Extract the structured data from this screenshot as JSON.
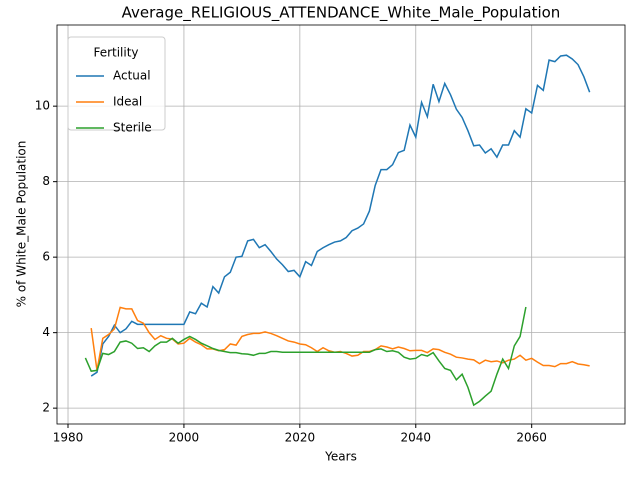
{
  "chart_data": {
    "type": "line",
    "title": "Average_RELIGIOUS_ATTENDANCE_White_Male_Population",
    "xlabel": "Years",
    "ylabel": "% of White_Male Population",
    "legend_title": "Fertility",
    "legend": "upper left",
    "grid": true,
    "x": [
      1983,
      1984,
      1985,
      1986,
      1987,
      1988,
      1989,
      1990,
      1991,
      1992,
      1993,
      1994,
      1995,
      1996,
      1997,
      1998,
      1999,
      2000,
      2001,
      2002,
      2003,
      2004,
      2005,
      2006,
      2007,
      2008,
      2009,
      2010,
      2011,
      2012,
      2013,
      2014,
      2015,
      2016,
      2017,
      2018,
      2019,
      2020,
      2021,
      2022,
      2023,
      2024,
      2025,
      2026,
      2027,
      2028,
      2029,
      2030,
      2031,
      2032,
      2033,
      2034,
      2035,
      2036,
      2037,
      2038,
      2039,
      2040,
      2041,
      2042,
      2043,
      2044,
      2045,
      2046,
      2047,
      2048,
      2049,
      2050,
      2051,
      2052,
      2053,
      2054,
      2055,
      2056,
      2057,
      2058,
      2059,
      2060,
      2061,
      2062,
      2063,
      2064,
      2065,
      2066,
      2067,
      2068,
      2069,
      2070
    ],
    "series": [
      {
        "name": "Actual",
        "color": "#1f77b4",
        "values": [
          null,
          2.85,
          2.95,
          3.7,
          3.9,
          4.2,
          4.0,
          4.1,
          4.3,
          4.22,
          4.22,
          4.22,
          4.22,
          4.22,
          4.22,
          4.22,
          4.22,
          4.22,
          4.55,
          4.5,
          4.78,
          4.68,
          5.22,
          5.05,
          5.48,
          5.6,
          6.0,
          6.02,
          6.43,
          6.47,
          6.25,
          6.33,
          6.15,
          5.95,
          5.8,
          5.62,
          5.65,
          5.48,
          5.88,
          5.78,
          6.15,
          6.25,
          6.33,
          6.4,
          6.43,
          6.52,
          6.7,
          6.77,
          6.88,
          7.22,
          7.9,
          8.32,
          8.32,
          8.45,
          8.77,
          8.83,
          9.5,
          9.18,
          10.1,
          9.72,
          10.58,
          10.12,
          10.6,
          10.3,
          9.92,
          9.7,
          9.35,
          8.95,
          8.97,
          8.76,
          8.87,
          8.65,
          8.97,
          8.97,
          9.35,
          9.18,
          9.93,
          9.82,
          10.55,
          10.42,
          11.22,
          11.18,
          11.33,
          11.35,
          11.25,
          11.1,
          10.78,
          10.37
        ]
      },
      {
        "name": "Ideal",
        "color": "#ff7f0e",
        "values": [
          null,
          4.12,
          3.0,
          3.85,
          3.95,
          4.1,
          4.67,
          4.63,
          4.63,
          4.32,
          4.25,
          4.0,
          3.82,
          3.92,
          3.85,
          3.83,
          3.7,
          3.72,
          3.85,
          3.75,
          3.68,
          3.57,
          3.57,
          3.52,
          3.55,
          3.7,
          3.67,
          3.9,
          3.95,
          3.98,
          3.98,
          4.02,
          3.98,
          3.92,
          3.85,
          3.78,
          3.75,
          3.7,
          3.68,
          3.6,
          3.5,
          3.6,
          3.52,
          3.48,
          3.5,
          3.45,
          3.38,
          3.4,
          3.5,
          3.5,
          3.55,
          3.65,
          3.62,
          3.57,
          3.62,
          3.58,
          3.52,
          3.53,
          3.53,
          3.47,
          3.57,
          3.55,
          3.48,
          3.43,
          3.35,
          3.33,
          3.3,
          3.28,
          3.18,
          3.27,
          3.23,
          3.25,
          3.2,
          3.27,
          3.3,
          3.4,
          3.27,
          3.32,
          3.22,
          3.13,
          3.13,
          3.1,
          3.18,
          3.18,
          3.23,
          3.17,
          3.15,
          3.12
        ]
      },
      {
        "name": "Sterile",
        "color": "#2ca02c",
        "values": [
          3.33,
          2.98,
          3.0,
          3.45,
          3.42,
          3.5,
          3.75,
          3.78,
          3.72,
          3.58,
          3.6,
          3.5,
          3.65,
          3.75,
          3.75,
          3.85,
          3.72,
          3.82,
          3.9,
          3.82,
          3.72,
          3.65,
          3.58,
          3.53,
          3.5,
          3.47,
          3.47,
          3.44,
          3.43,
          3.4,
          3.45,
          3.45,
          3.5,
          3.5,
          3.48,
          3.48,
          3.48,
          3.48,
          3.48,
          3.48,
          3.48,
          3.48,
          3.48,
          3.48,
          3.48,
          3.48,
          3.48,
          3.48,
          3.48,
          3.48,
          3.55,
          3.57,
          3.5,
          3.52,
          3.48,
          3.35,
          3.3,
          3.32,
          3.42,
          3.38,
          3.47,
          3.25,
          3.05,
          3.0,
          2.75,
          2.9,
          2.55,
          2.08,
          2.18,
          2.32,
          2.45,
          2.9,
          3.3,
          3.05,
          3.65,
          3.9,
          4.68,
          null,
          null,
          null,
          null,
          null,
          null,
          null,
          null,
          null,
          null,
          null
        ]
      }
    ],
    "xlim": [
      1978.1,
      2076.1
    ],
    "ylim": [
      1.58,
      12.15
    ],
    "xticks": [
      1980,
      2000,
      2020,
      2040,
      2060
    ],
    "yticks": [
      2,
      4,
      6,
      8,
      10
    ]
  }
}
